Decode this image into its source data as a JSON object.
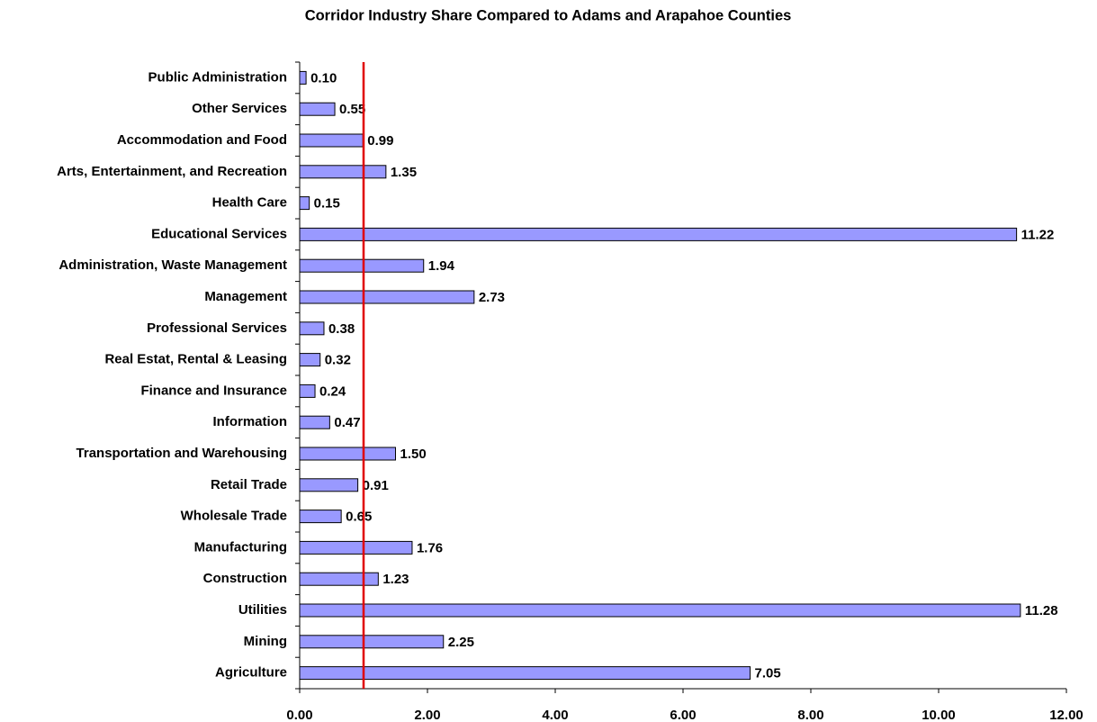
{
  "chart_data": {
    "type": "barh",
    "title": "Corridor Industry Share Compared to Adams and Arapahoe Counties",
    "categories": [
      "Public Administration",
      "Other Services",
      "Accommodation and Food",
      "Arts, Entertainment, and Recreation",
      "Health Care",
      "Educational Services",
      "Administration, Waste Management",
      "Management",
      "Professional Services",
      "Real Estat, Rental & Leasing",
      "Finance and Insurance",
      "Information",
      "Transportation and Warehousing",
      "Retail Trade",
      "Wholesale Trade",
      "Manufacturing",
      "Construction",
      "Utilities",
      "Mining",
      "Agriculture"
    ],
    "values": [
      0.1,
      0.55,
      0.99,
      1.35,
      0.15,
      11.22,
      1.94,
      2.73,
      0.38,
      0.32,
      0.24,
      0.47,
      1.5,
      0.91,
      0.65,
      1.76,
      1.23,
      11.28,
      2.25,
      7.05
    ],
    "value_labels": [
      "0.10",
      "0.55",
      "0.99",
      "1.35",
      "0.15",
      "11.22",
      "1.94",
      "2.73",
      "0.38",
      "0.32",
      "0.24",
      "0.47",
      "1.50",
      "0.91",
      "0.65",
      "1.76",
      "1.23",
      "11.28",
      "2.25",
      "7.05"
    ],
    "color": "#9999ff",
    "xlim": [
      0,
      12
    ],
    "xticks": [
      {
        "value": 0,
        "label": "0.00"
      },
      {
        "value": 2,
        "label": "2.00"
      },
      {
        "value": 4,
        "label": "4.00"
      },
      {
        "value": 6,
        "label": "6.00"
      },
      {
        "value": 8,
        "label": "8.00"
      },
      {
        "value": 10,
        "label": "10.00"
      },
      {
        "value": 12,
        "label": "12.00"
      }
    ],
    "reference_line": {
      "value": 1,
      "color": "#e00000"
    }
  }
}
